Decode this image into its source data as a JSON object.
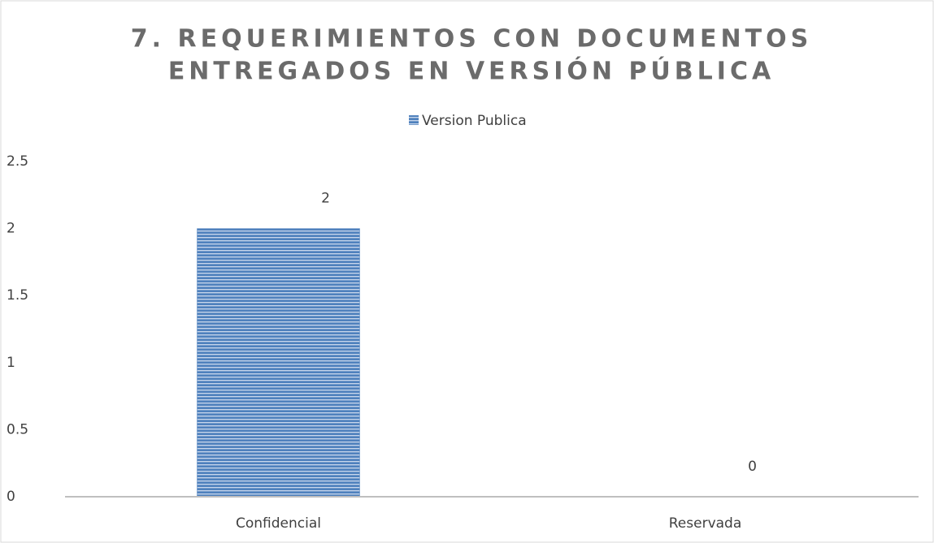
{
  "chart_data": {
    "type": "bar",
    "title": [
      "7. REQUERIMIENTOS CON DOCUMENTOS",
      "ENTREGADOS EN VERSIÓN PÚBLICA"
    ],
    "categories": [
      "Confidencial",
      "Reservada"
    ],
    "series": [
      {
        "name": "Version Publica",
        "color": "#4f81bd",
        "values": [
          2,
          0
        ]
      }
    ],
    "ylim": [
      0,
      2.5
    ],
    "yticks": [
      0,
      0.5,
      1,
      1.5,
      2,
      2.5
    ],
    "grid": false
  }
}
